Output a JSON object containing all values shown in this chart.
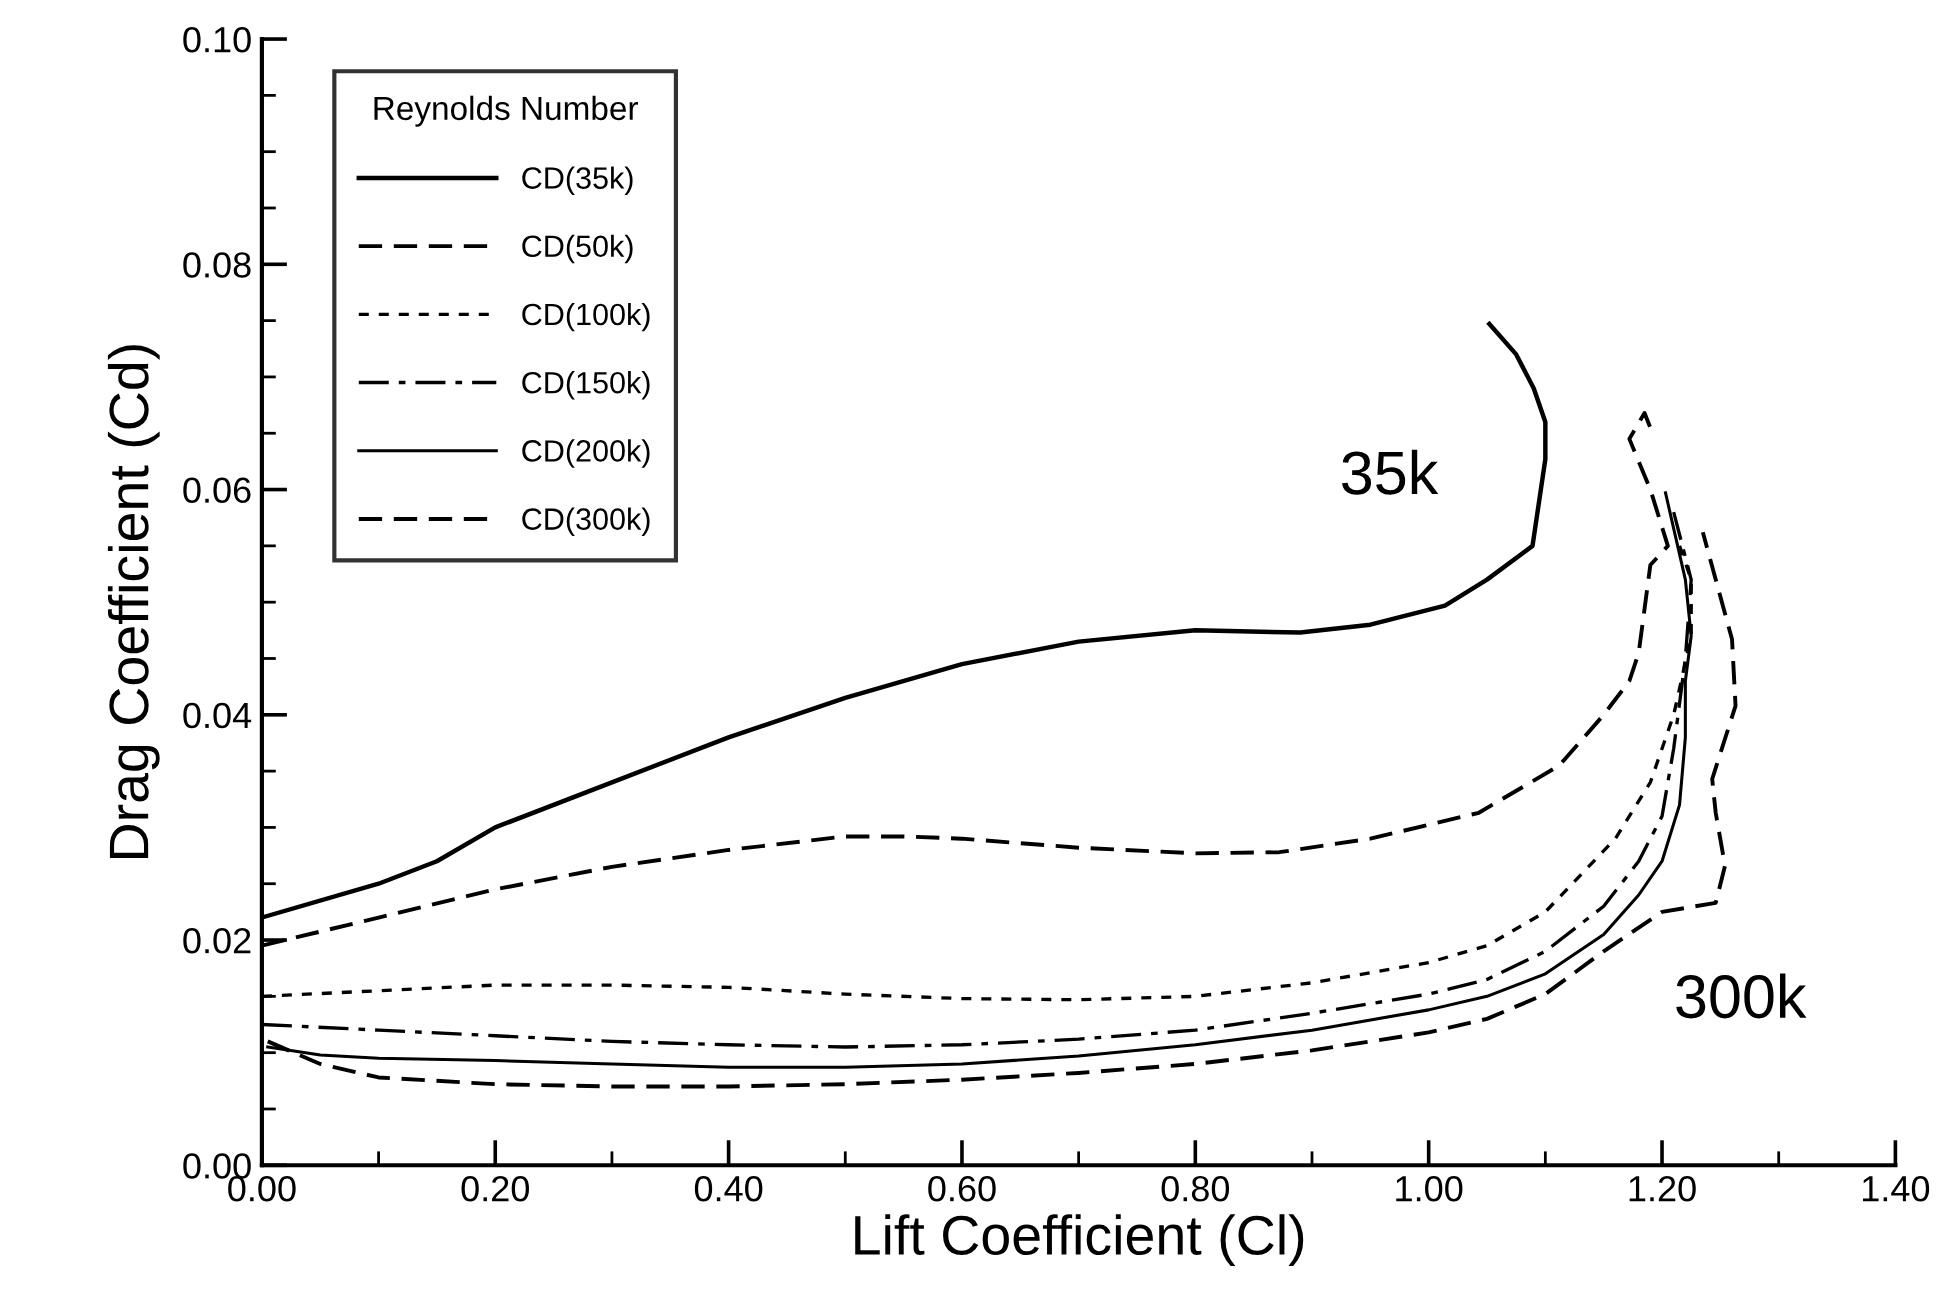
{
  "chart_data": {
    "type": "line",
    "xlabel": "Lift Coefficient (Cl)",
    "ylabel": "Drag Coefficient (Cd)",
    "legend_title": "Reynolds Number",
    "legend": "top left",
    "grid": false,
    "marker": "none",
    "xlim": [
      0,
      1.4
    ],
    "ylim": [
      0,
      0.1
    ],
    "xticks": [
      {
        "value": 0,
        "label": "0.00"
      },
      {
        "value": 0.2,
        "label": "0.20"
      },
      {
        "value": 0.4,
        "label": "0.40"
      },
      {
        "value": 0.6,
        "label": "0.60"
      },
      {
        "value": 0.8,
        "label": "0.80"
      },
      {
        "value": 1.0,
        "label": "1.00"
      },
      {
        "value": 1.2,
        "label": "1.20"
      },
      {
        "value": 1.4,
        "label": "1.40"
      }
    ],
    "yticks": [
      {
        "value": 0,
        "label": "0.00"
      },
      {
        "value": 0.02,
        "label": "0.02"
      },
      {
        "value": 0.04,
        "label": "0.04"
      },
      {
        "value": 0.06,
        "label": "0.06"
      },
      {
        "value": 0.08,
        "label": "0.08"
      },
      {
        "value": 0.1,
        "label": "0.10"
      }
    ],
    "series": [
      {
        "name": "CD(35k)",
        "color": "#000000",
        "line_style": "solid",
        "x": [
          0,
          0.1,
          0.15,
          0.2,
          0.3,
          0.4,
          0.5,
          0.6,
          0.7,
          0.8,
          0.89,
          0.95,
          1.014,
          1.05,
          1.089,
          1.1,
          1.1,
          1.09,
          1.075,
          1.052
        ],
        "values": [
          0.022,
          0.025,
          0.027,
          0.03,
          0.034,
          0.038,
          0.0415,
          0.0445,
          0.0465,
          0.0475,
          0.0473,
          0.048,
          0.0497,
          0.052,
          0.055,
          0.0627,
          0.066,
          0.069,
          0.072,
          0.0747
        ]
      },
      {
        "name": "CD(50k)",
        "color": "#000000",
        "line_style": "dashed",
        "x": [
          0,
          0.1,
          0.2,
          0.3,
          0.4,
          0.5,
          0.55,
          0.6,
          0.7,
          0.8,
          0.872,
          0.95,
          1.043,
          1.112,
          1.15,
          1.172,
          1.18,
          1.19,
          1.205,
          1.19,
          1.172,
          1.185,
          1.19
        ],
        "values": [
          0.0195,
          0.022,
          0.0245,
          0.0265,
          0.028,
          0.0292,
          0.0292,
          0.029,
          0.0282,
          0.0277,
          0.0278,
          0.029,
          0.0313,
          0.0355,
          0.04,
          0.043,
          0.0455,
          0.0533,
          0.055,
          0.06,
          0.0645,
          0.0668,
          0.0655
        ]
      },
      {
        "name": "CD(100k)",
        "color": "#000000",
        "line_style": "dotted",
        "x": [
          0,
          0.1,
          0.2,
          0.3,
          0.4,
          0.5,
          0.6,
          0.7,
          0.8,
          0.9,
          1.0,
          1.05,
          1.1,
          1.16,
          1.19,
          1.21,
          1.225,
          1.225,
          1.215
        ],
        "values": [
          0.015,
          0.0155,
          0.016,
          0.016,
          0.0158,
          0.0152,
          0.0148,
          0.0147,
          0.015,
          0.0162,
          0.018,
          0.0195,
          0.0225,
          0.029,
          0.034,
          0.04,
          0.047,
          0.052,
          0.055
        ]
      },
      {
        "name": "CD(150k)",
        "color": "#000000",
        "line_style": "dashdot",
        "x": [
          0,
          0.1,
          0.2,
          0.3,
          0.4,
          0.5,
          0.6,
          0.7,
          0.8,
          0.9,
          1.0,
          1.05,
          1.1,
          1.15,
          1.18,
          1.2,
          1.21,
          1.22,
          1.225,
          1.21
        ],
        "values": [
          0.0125,
          0.012,
          0.0115,
          0.011,
          0.0107,
          0.0105,
          0.0107,
          0.0112,
          0.012,
          0.0135,
          0.0152,
          0.0165,
          0.019,
          0.023,
          0.027,
          0.031,
          0.037,
          0.045,
          0.052,
          0.058
        ]
      },
      {
        "name": "CD(200k)",
        "color": "#000000",
        "line_style": "solid",
        "x": [
          0.005,
          0.05,
          0.1,
          0.2,
          0.3,
          0.4,
          0.5,
          0.6,
          0.7,
          0.8,
          0.9,
          1.0,
          1.05,
          1.1,
          1.15,
          1.18,
          1.2,
          1.215,
          1.22,
          1.22,
          1.225,
          1.22,
          1.203
        ],
        "values": [
          0.0105,
          0.0098,
          0.0095,
          0.0093,
          0.009,
          0.0087,
          0.0087,
          0.009,
          0.0097,
          0.0107,
          0.012,
          0.0138,
          0.015,
          0.017,
          0.0205,
          0.024,
          0.027,
          0.032,
          0.038,
          0.043,
          0.047,
          0.052,
          0.0597
        ]
      },
      {
        "name": "CD(300k)",
        "color": "#000000",
        "line_style": "dashed",
        "x": [
          0.005,
          0.05,
          0.1,
          0.2,
          0.3,
          0.4,
          0.5,
          0.6,
          0.7,
          0.8,
          0.9,
          1.0,
          1.05,
          1.1,
          1.15,
          1.2,
          1.246,
          1.254,
          1.246,
          1.243,
          1.263,
          1.26,
          1.235
        ],
        "values": [
          0.011,
          0.009,
          0.0078,
          0.0072,
          0.007,
          0.007,
          0.0072,
          0.0076,
          0.0082,
          0.009,
          0.0102,
          0.0118,
          0.013,
          0.0152,
          0.019,
          0.0225,
          0.0233,
          0.0266,
          0.0313,
          0.0343,
          0.0408,
          0.0467,
          0.0562
        ]
      }
    ],
    "annotations": [
      "35k",
      "300k"
    ]
  }
}
